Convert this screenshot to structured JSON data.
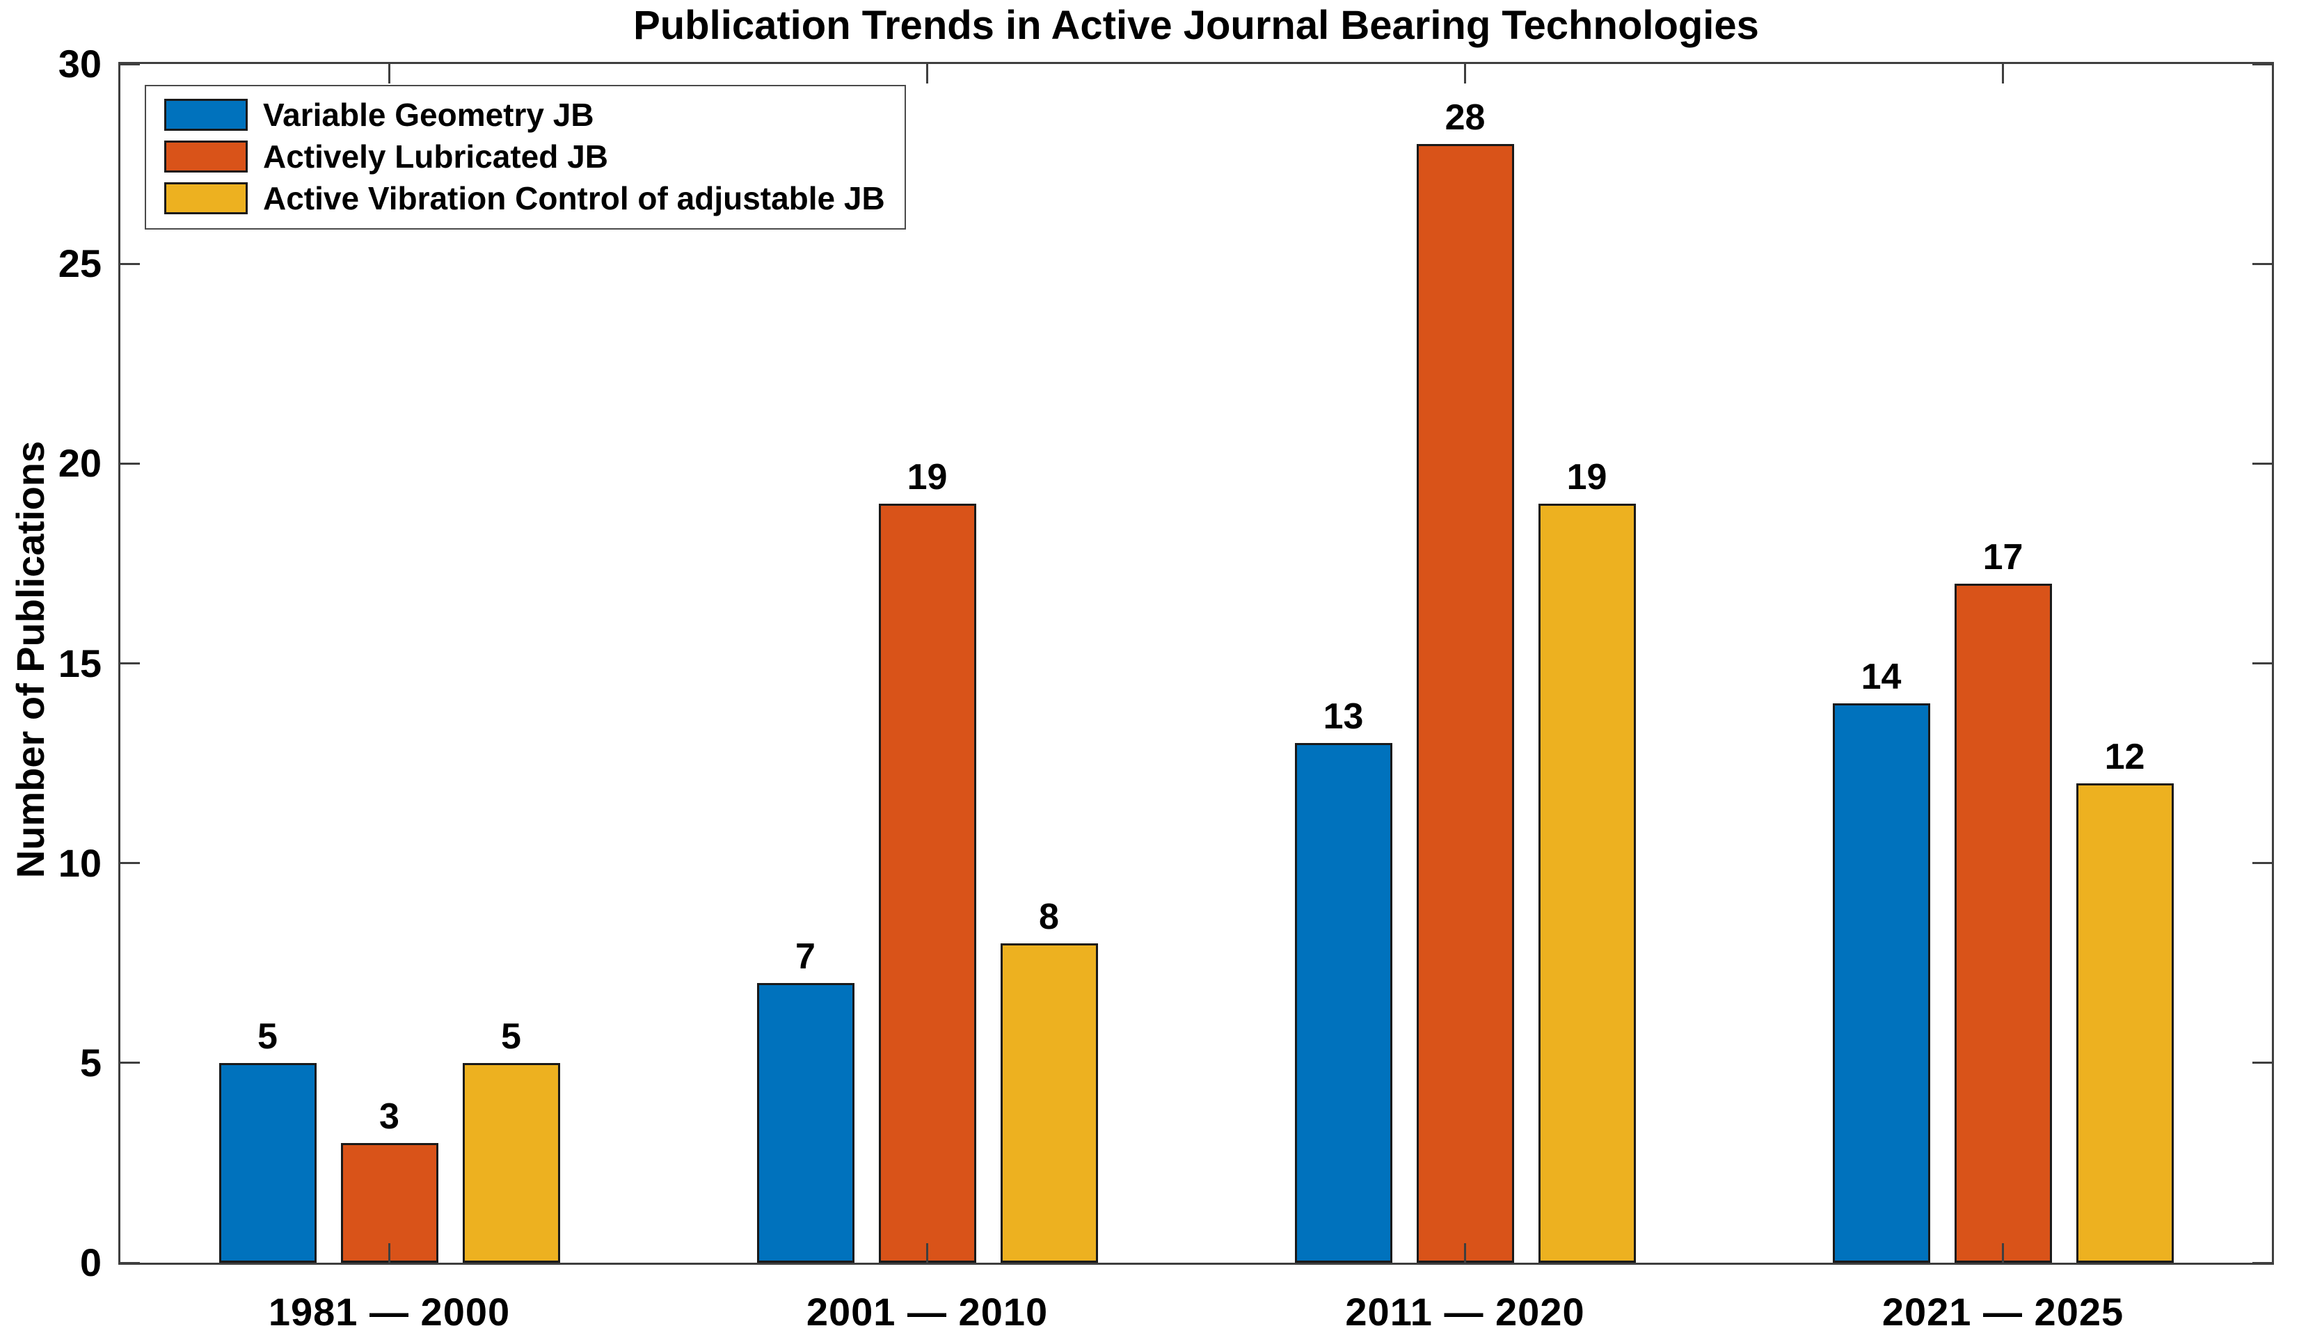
{
  "chart_data": {
    "type": "bar",
    "title": "Publication Trends in Active Journal Bearing Technologies",
    "ylabel": "Number of Publications",
    "xlabel": "",
    "categories": [
      "1981 — 2000",
      "2001 — 2010",
      "2011 — 2020",
      "2021 — 2025"
    ],
    "series": [
      {
        "name": "Variable Geometry JB",
        "color": "#0072BD",
        "values": [
          5,
          7,
          13,
          14
        ]
      },
      {
        "name": "Actively Lubricated JB",
        "color": "#D95319",
        "values": [
          3,
          19,
          28,
          17
        ]
      },
      {
        "name": "Active Vibration Control of adjustable JB",
        "color": "#EDB120",
        "values": [
          5,
          8,
          19,
          12
        ]
      }
    ],
    "ylim": [
      0,
      30
    ],
    "yticks": [
      0,
      5,
      10,
      15,
      20,
      25,
      30
    ],
    "grid": false,
    "legend_position": "top-left",
    "bar_value_labels": true,
    "colors": {
      "bar_edge": "#1a1a1a",
      "axis": "#3f3f3f",
      "text": "#000000",
      "background": "#ffffff"
    }
  }
}
